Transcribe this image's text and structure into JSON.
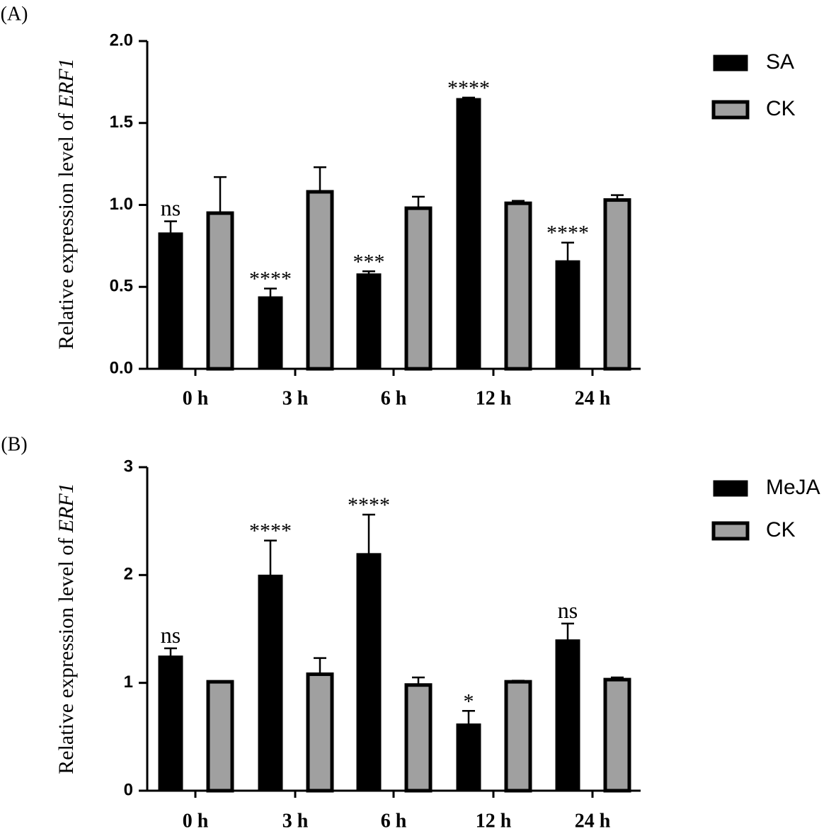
{
  "chart_data": [
    {
      "panel_label": "(A)",
      "type": "bar",
      "ylabel_prefix": "Relative expression level of ",
      "ylabel_gene": "ERF1",
      "ylim": [
        0,
        2.0
      ],
      "yticks": [
        0.0,
        0.5,
        1.0,
        1.5,
        2.0
      ],
      "ytick_labels": [
        "0.0",
        "0.5",
        "1.0",
        "1.5",
        "2.0"
      ],
      "categories": [
        "0 h",
        "3 h",
        "6 h",
        "12 h",
        "24 h"
      ],
      "series": [
        {
          "name": "SA",
          "color": "#000000",
          "values": [
            0.83,
            0.44,
            0.58,
            1.65,
            0.66
          ],
          "errors": [
            0.07,
            0.05,
            0.015,
            0.005,
            0.11
          ]
        },
        {
          "name": "CK",
          "color": "#a0a0a0",
          "values": [
            0.95,
            1.08,
            0.98,
            1.01,
            1.03
          ],
          "errors": [
            0.22,
            0.15,
            0.07,
            0.015,
            0.03
          ]
        }
      ],
      "annotations": [
        "ns",
        "****",
        "***",
        "****",
        "****"
      ]
    },
    {
      "panel_label": "(B)",
      "type": "bar",
      "ylabel_prefix": "Relative expression level of ",
      "ylabel_gene": "ERF1",
      "ylim": [
        0,
        3
      ],
      "yticks": [
        0,
        1,
        2,
        3
      ],
      "ytick_labels": [
        "0",
        "1",
        "2",
        "3"
      ],
      "categories": [
        "0 h",
        "3 h",
        "6 h",
        "12 h",
        "24 h"
      ],
      "series": [
        {
          "name": "MeJA",
          "color": "#000000",
          "values": [
            1.25,
            2.0,
            2.2,
            0.62,
            1.4
          ],
          "errors": [
            0.07,
            0.32,
            0.36,
            0.12,
            0.15
          ]
        },
        {
          "name": "CK",
          "color": "#a0a0a0",
          "values": [
            1.01,
            1.08,
            0.98,
            1.01,
            1.03
          ],
          "errors": [
            0.005,
            0.15,
            0.07,
            0.01,
            0.02
          ]
        }
      ],
      "annotations": [
        "ns",
        "****",
        "****",
        "*",
        "ns"
      ]
    }
  ]
}
